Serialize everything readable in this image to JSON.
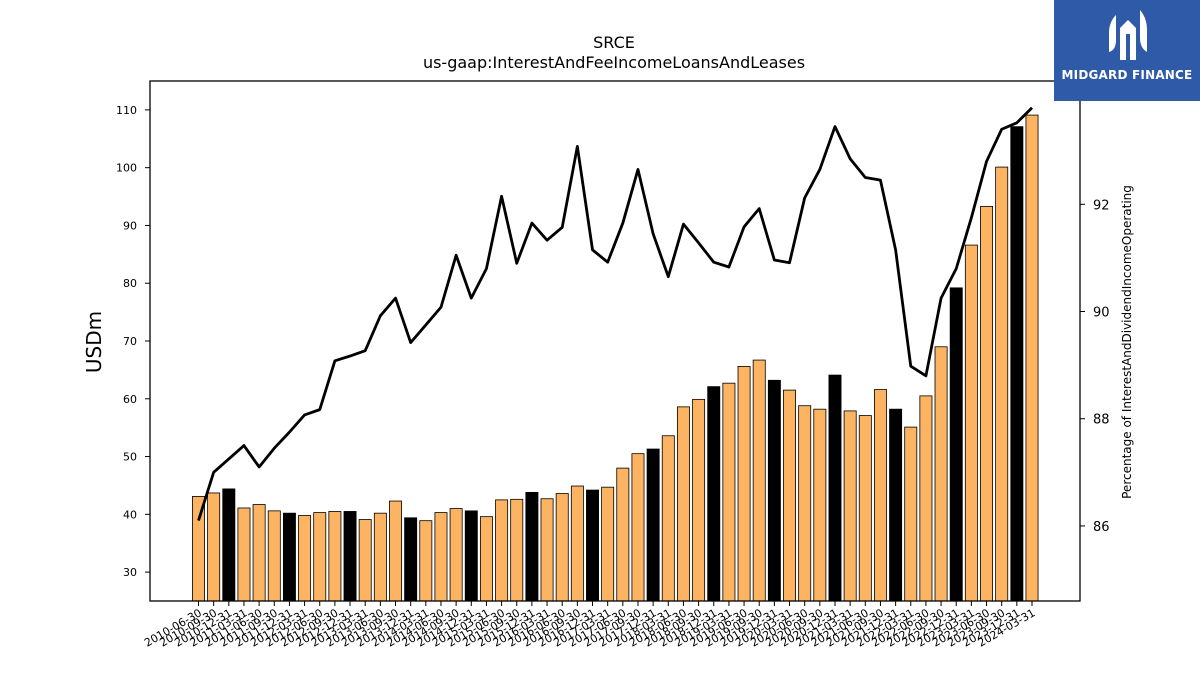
{
  "logo": {
    "text": "MIDGARD FINANCE",
    "color": "#2e5aa8"
  },
  "chart_data": {
    "type": "bar+line",
    "title": "SRCE",
    "subtitle": "us-gaap:InterestAndFeeIncomeLoansAndLeases",
    "ylabel": "USDm",
    "y2label": "Percentage of InterestAndDividendIncomeOperating",
    "ylim": [
      25,
      115
    ],
    "y2lim": [
      84.6,
      94.3
    ],
    "yticks": [
      30,
      40,
      50,
      60,
      70,
      80,
      90,
      100,
      110
    ],
    "y2ticks": [
      86,
      88,
      90,
      92
    ],
    "bar_color": "#fdb462",
    "bar_highlight_color": "#000000",
    "line_color": "#000000",
    "x": [
      "2010-06-30",
      "2010-09-30",
      "2010-12-31",
      "2011-03-31",
      "2011-06-30",
      "2011-09-30",
      "2011-12-31",
      "2012-03-31",
      "2012-06-30",
      "2012-09-30",
      "2012-12-31",
      "2013-03-31",
      "2013-06-30",
      "2013-09-30",
      "2013-12-31",
      "2014-03-31",
      "2014-06-30",
      "2014-09-30",
      "2014-12-31",
      "2015-03-31",
      "2015-06-30",
      "2015-09-30",
      "2015-12-31",
      "2016-03-31",
      "2016-06-30",
      "2016-09-30",
      "2016-12-31",
      "2017-03-31",
      "2017-06-30",
      "2017-09-30",
      "2017-12-31",
      "2018-03-31",
      "2018-06-30",
      "2018-09-30",
      "2018-12-31",
      "2019-03-31",
      "2019-06-30",
      "2019-09-30",
      "2019-12-31",
      "2020-03-31",
      "2020-06-30",
      "2020-09-30",
      "2020-12-31",
      "2021-03-31",
      "2021-06-30",
      "2021-09-30",
      "2021-12-31",
      "2022-03-31",
      "2022-06-30",
      "2022-09-30",
      "2022-12-31",
      "2023-03-31",
      "2023-06-30",
      "2023-09-30",
      "2023-12-31",
      "2024-03-31"
    ],
    "xtick_labels": [
      "2010-06-30",
      "2010-09-30",
      "2010-12-31",
      "2011-03-31",
      "2011-06-30",
      "2011-09-30",
      "2011-12-31",
      "2012-03-31",
      "2012-06-30",
      "2012-09-30",
      "2012-12-31",
      "2013-03-31",
      "2013-06-30",
      "2013-09-30",
      "2013-12-31",
      "2014-03-31",
      "2014-06-30",
      "2014-09-30",
      "2014-12-31",
      "2015-03-31",
      "2015-06-30",
      "2015-09-30",
      "2015-12-31",
      "2016-03-31",
      "2016-06-30",
      "2016-09-30",
      "2016-12-31",
      "2017-03-31",
      "2017-06-30",
      "2017-09-30",
      "2017-12-31",
      "2018-03-31",
      "2018-06-30",
      "2018-09-30",
      "2018-12-31",
      "2019-03-31",
      "2019-06-30",
      "2019-09-30",
      "2019-12-31",
      "2020-03-31",
      "2020-06-30",
      "2020-09-30",
      "2020-12-31",
      "2021-03-31",
      "2021-06-30",
      "2021-09-30",
      "2021-12-31",
      "2022-03-31",
      "2022-06-30",
      "2022-09-30",
      "2022-12-31",
      "2023-03-31",
      "2023-06-30",
      "2023-09-30",
      "2023-12-31",
      "2024-03-31"
    ],
    "bars": [
      43.1,
      43.7,
      44.4,
      41.1,
      41.7,
      40.6,
      40.2,
      39.8,
      40.3,
      40.5,
      40.5,
      39.1,
      40.2,
      42.3,
      39.4,
      38.9,
      40.3,
      41.0,
      40.6,
      39.6,
      42.5,
      42.6,
      43.8,
      42.7,
      43.6,
      44.9,
      44.2,
      44.7,
      48.0,
      50.5,
      51.3,
      53.6,
      58.6,
      59.9,
      62.1,
      62.7,
      65.6,
      66.7,
      63.2,
      61.5,
      58.8,
      58.2,
      64.1,
      57.9,
      57.1,
      61.6,
      58.2,
      55.1,
      60.5,
      69.0,
      79.2,
      86.6,
      93.3,
      100.1,
      107.1,
      109.1
    ],
    "highlight": [
      false,
      false,
      true,
      false,
      false,
      false,
      true,
      false,
      false,
      false,
      true,
      false,
      false,
      false,
      true,
      false,
      false,
      false,
      true,
      false,
      false,
      false,
      true,
      false,
      false,
      false,
      true,
      false,
      false,
      false,
      true,
      false,
      false,
      false,
      true,
      false,
      false,
      false,
      true,
      false,
      false,
      false,
      true,
      false,
      false,
      false,
      true,
      false,
      false,
      false,
      true,
      false,
      false,
      false,
      true,
      false
    ],
    "line": [
      86.1,
      87.0,
      87.25,
      87.5,
      87.1,
      87.45,
      87.75,
      88.07,
      88.17,
      89.08,
      89.17,
      89.27,
      89.92,
      90.25,
      89.42,
      89.75,
      90.08,
      91.05,
      90.25,
      90.8,
      92.15,
      90.9,
      91.65,
      91.33,
      91.57,
      93.08,
      91.15,
      90.92,
      91.65,
      92.65,
      91.45,
      90.65,
      91.63,
      91.28,
      90.92,
      90.83,
      91.58,
      91.92,
      90.96,
      90.91,
      92.12,
      92.65,
      93.45,
      92.85,
      92.5,
      92.45,
      91.15,
      88.98,
      88.8,
      90.25,
      90.8,
      91.75,
      92.8,
      93.4,
      93.52,
      93.8
    ]
  }
}
